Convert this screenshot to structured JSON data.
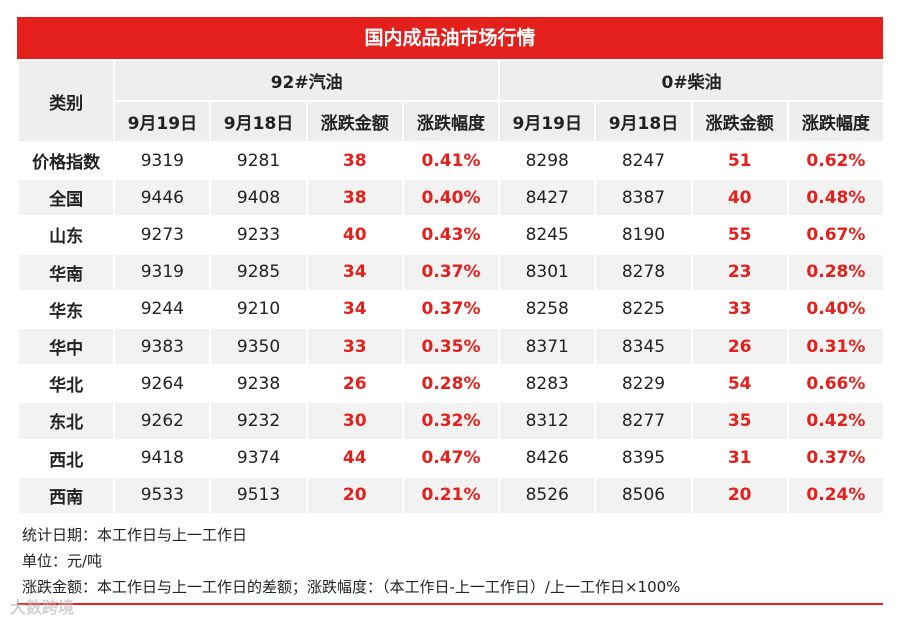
{
  "title": "国内成品油市场行情",
  "header": {
    "category": "类别",
    "groups": [
      "92#汽油",
      "0#柴油"
    ],
    "columns": [
      "9月19日",
      "9月18日",
      "涨跌金额",
      "涨跌幅度",
      "9月19日",
      "9月18日",
      "涨跌金额",
      "涨跌幅度"
    ]
  },
  "table": {
    "rows": [
      [
        "价格指数",
        9319,
        9281,
        38,
        "0.41%",
        8298,
        8247,
        51,
        "0.62%"
      ],
      [
        "全国",
        9446,
        9408,
        38,
        "0.40%",
        8427,
        8387,
        40,
        "0.48%"
      ],
      [
        "山东",
        9273,
        9233,
        40,
        "0.43%",
        8245,
        8190,
        55,
        "0.67%"
      ],
      [
        "华南",
        9319,
        9285,
        34,
        "0.37%",
        8301,
        8278,
        23,
        "0.28%"
      ],
      [
        "华东",
        9244,
        9210,
        34,
        "0.37%",
        8258,
        8225,
        33,
        "0.40%"
      ],
      [
        "华中",
        9383,
        9350,
        33,
        "0.35%",
        8371,
        8345,
        26,
        "0.31%"
      ],
      [
        "华北",
        9264,
        9238,
        26,
        "0.28%",
        8283,
        8229,
        54,
        "0.66%"
      ],
      [
        "东北",
        9262,
        9232,
        30,
        "0.32%",
        8312,
        8277,
        35,
        "0.42%"
      ],
      [
        "西北",
        9418,
        9374,
        44,
        "0.47%",
        8426,
        8395,
        31,
        "0.37%"
      ],
      [
        "西南",
        9533,
        9513,
        20,
        "0.21%",
        8526,
        8506,
        20,
        "0.24%"
      ]
    ]
  },
  "notes": [
    "统计日期：本工作日与上一工作日",
    "单位：元/吨",
    "涨跌金额：本工作日与上一工作日的差额；涨跌幅度：（本工作日-上一工作日）/上一工作日×100%"
  ],
  "watermark": "大数跨境"
}
